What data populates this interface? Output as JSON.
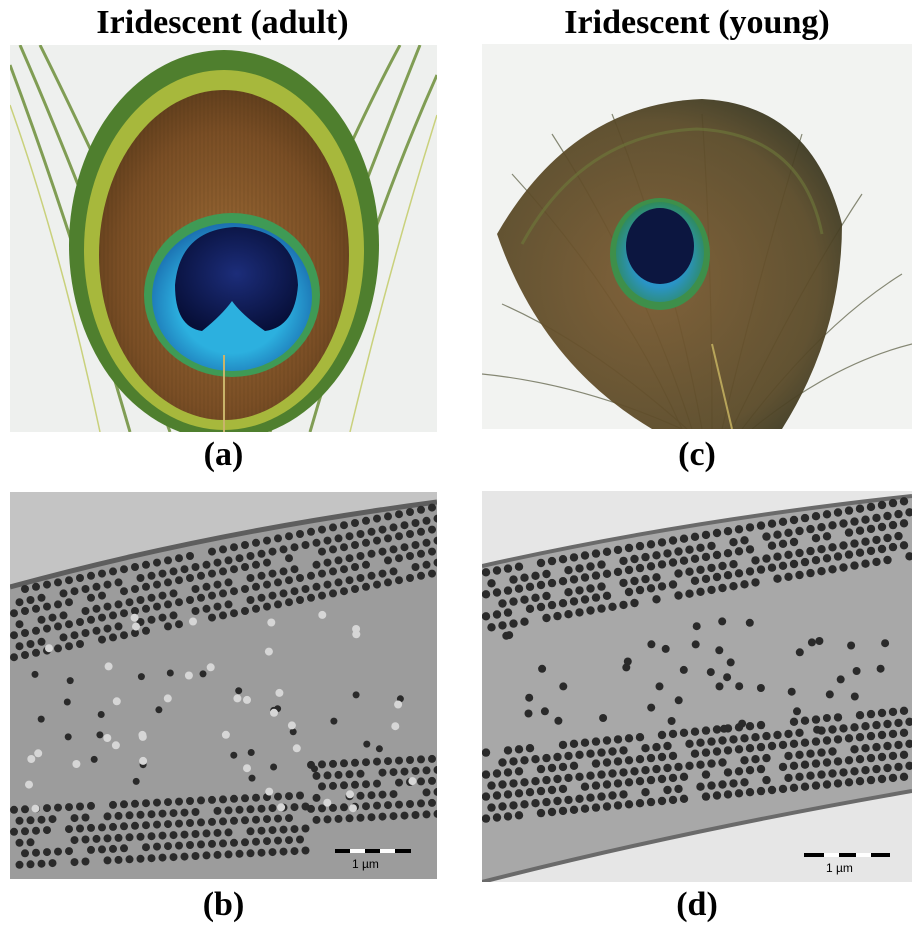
{
  "titles": {
    "left": "Iridescent (adult)",
    "right": "Iridescent (young)"
  },
  "panels": {
    "a": {
      "label": "(a)",
      "content": "peacock-feather-eye-adult"
    },
    "b": {
      "label": "(b)",
      "content": "tem-micrograph-adult",
      "scale_bar": "1 µm"
    },
    "c": {
      "label": "(c)",
      "content": "peacock-feather-eye-young"
    },
    "d": {
      "label": "(d)",
      "content": "tem-micrograph-young",
      "scale_bar": "1 µm"
    }
  },
  "colors": {
    "eye_center": "#0b1a55",
    "eye_ring": "#2ea8d8",
    "bronze": "#8a5a2a",
    "green_fringe": "#6aa83a",
    "tem_background": "#9a9a9a",
    "melanosome": "#2a2a2a"
  }
}
